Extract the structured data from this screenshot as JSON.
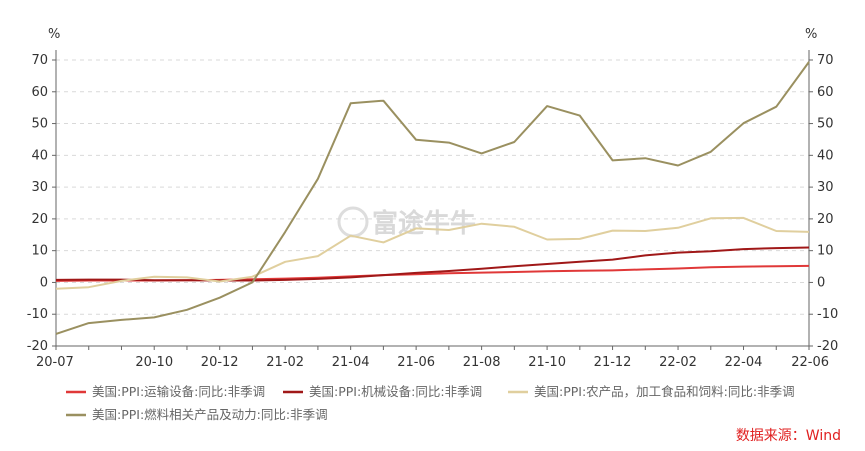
{
  "chart_data": {
    "type": "line",
    "y_unit_left": "%",
    "y_unit_right": "%",
    "ylim": [
      -20,
      70
    ],
    "y_ticks": [
      -20,
      -10,
      0,
      10,
      20,
      30,
      40,
      50,
      60,
      70
    ],
    "x_tick_labels": [
      "20-07",
      "20-10",
      "20-12",
      "21-02",
      "21-04",
      "21-06",
      "21-08",
      "21-10",
      "21-12",
      "22-02",
      "22-04",
      "22-06"
    ],
    "x": [
      "20-07",
      "20-08",
      "20-09",
      "20-10",
      "20-11",
      "20-12",
      "21-01",
      "21-02",
      "21-03",
      "21-04",
      "21-05",
      "21-06",
      "21-07",
      "21-08",
      "21-09",
      "21-10",
      "21-11",
      "21-12",
      "22-01",
      "22-02",
      "22-03",
      "22-04",
      "22-05",
      "22-06"
    ],
    "grid": true,
    "legend_position": "bottom",
    "series": [
      {
        "name": "美国:PPI:运输设备:同比:非季调",
        "color": "#e03838",
        "values": [
          0.5,
          0.6,
          0.6,
          0.6,
          0.7,
          0.8,
          1.0,
          1.2,
          1.5,
          1.9,
          2.3,
          2.6,
          2.9,
          3.1,
          3.3,
          3.5,
          3.7,
          3.8,
          4.1,
          4.4,
          4.8,
          5.0,
          5.1,
          5.2
        ]
      },
      {
        "name": "美国:PPI:机械设备:同比:非季调",
        "color": "#a01818",
        "values": [
          0.8,
          0.9,
          0.9,
          0.7,
          0.7,
          0.6,
          0.6,
          0.8,
          1.1,
          1.6,
          2.3,
          3.0,
          3.6,
          4.3,
          5.1,
          5.8,
          6.5,
          7.2,
          8.5,
          9.4,
          9.8,
          10.5,
          10.8,
          11.0
        ]
      },
      {
        "name": "美国:PPI:农产品，加工食品和饲料:同比:非季调",
        "color": "#e0cf9e",
        "values": [
          -2.0,
          -1.5,
          0.5,
          1.8,
          1.6,
          0.3,
          1.8,
          6.5,
          8.3,
          14.7,
          12.6,
          17.0,
          16.5,
          18.5,
          17.5,
          13.5,
          13.7,
          16.3,
          16.2,
          17.2,
          20.2,
          20.3,
          16.2,
          15.9
        ]
      },
      {
        "name": "美国:PPI:燃料相关产品及动力:同比:非季调",
        "color": "#9a9060",
        "values": [
          -16.2,
          -12.8,
          -11.8,
          -11.0,
          -8.6,
          -4.8,
          0.0,
          15.9,
          32.6,
          56.4,
          57.2,
          44.9,
          44.0,
          40.6,
          44.2,
          55.5,
          52.5,
          38.4,
          39.1,
          36.8,
          41.1,
          50.1,
          55.3,
          69.4
        ]
      }
    ]
  },
  "watermark_text": "富途牛牛",
  "source": "数据来源：Wind"
}
